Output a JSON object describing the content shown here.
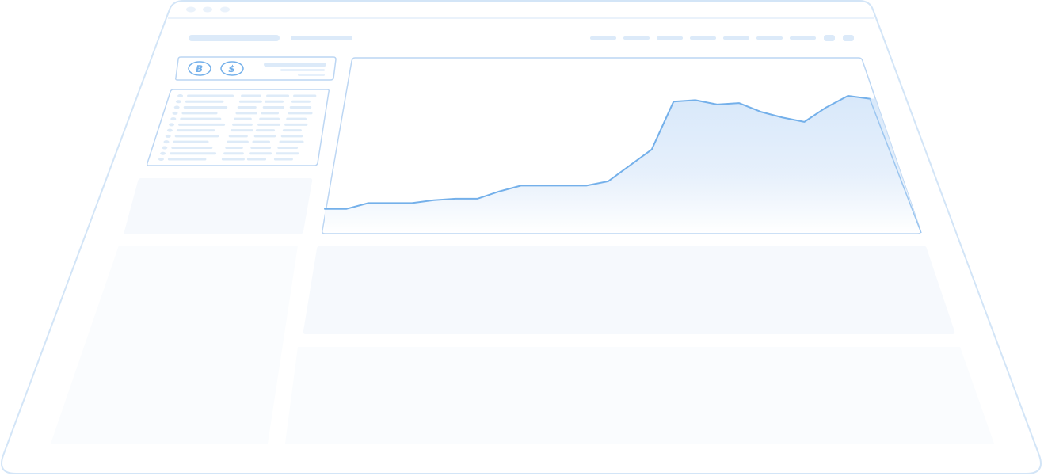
{
  "window": {
    "traffic_lights": [
      "dot",
      "dot",
      "dot"
    ]
  },
  "header": {
    "nav_items_count_hint": "",
    "icons": [
      "menu-icon",
      "account-icon"
    ]
  },
  "wallet_card": {
    "coins": [
      {
        "symbol": "Ƀ",
        "icon": "bitcoin-icon"
      },
      {
        "symbol": "$",
        "icon": "dollar-icon"
      }
    ]
  },
  "colors": {
    "outline": "#cfe2f6",
    "accent_line": "#74b0ea",
    "area_fill_top": "#d6e7fa",
    "area_fill_bottom": "#ffffff",
    "placeholder_bar": "#dceaf9",
    "ghost_panel": "#f6f9fd"
  },
  "chart_data": {
    "type": "area",
    "series": [
      {
        "values": [
          10,
          10,
          14,
          14,
          14,
          16,
          17,
          17,
          22,
          26,
          26,
          26,
          26,
          29,
          40,
          51,
          84,
          85,
          82,
          83,
          77,
          73,
          70,
          80,
          88,
          86
        ]
      }
    ],
    "grid": false,
    "legend": "none"
  }
}
